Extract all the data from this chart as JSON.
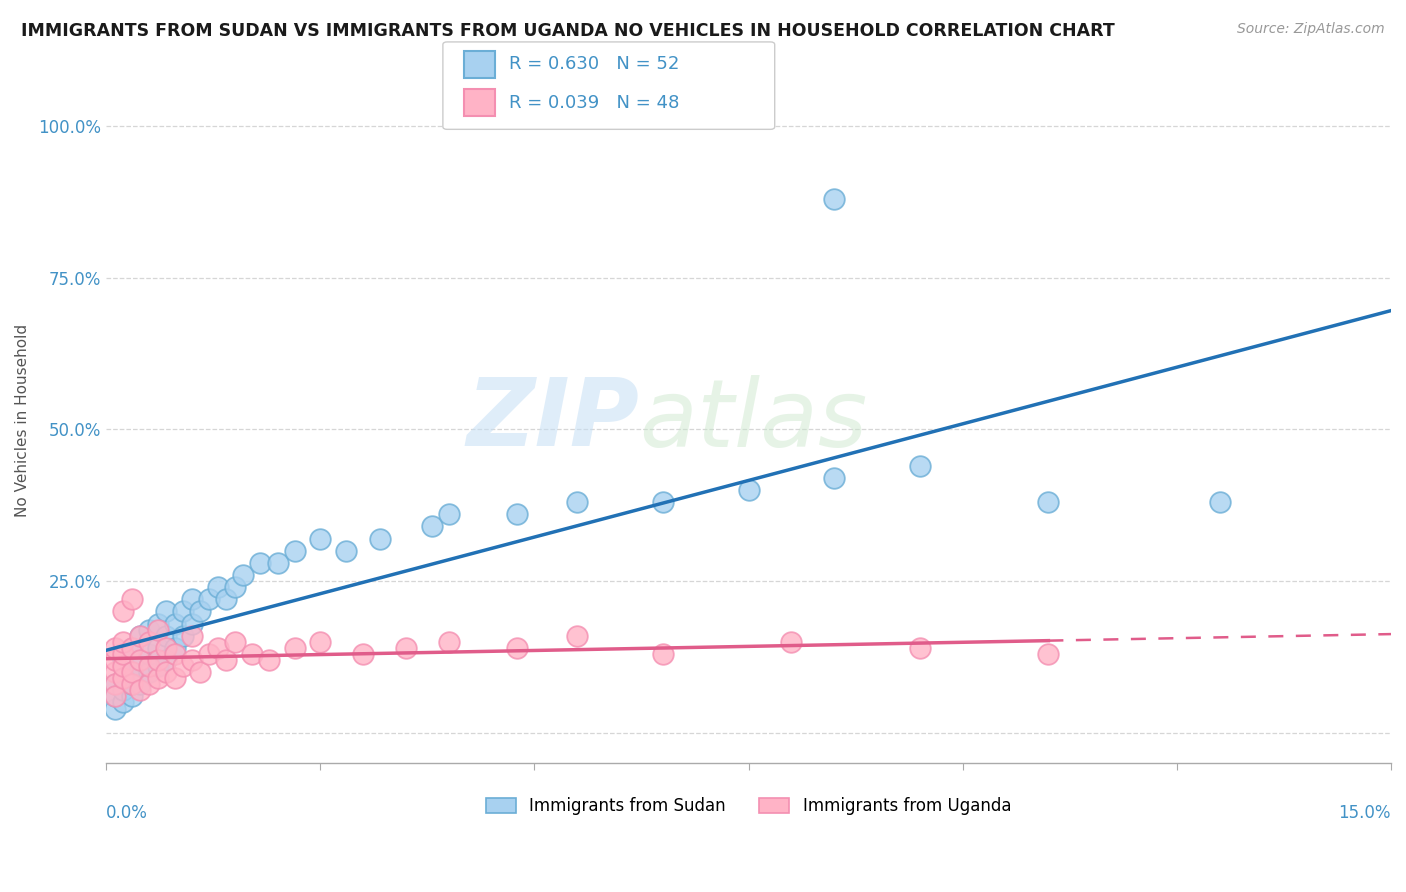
{
  "title": "IMMIGRANTS FROM SUDAN VS IMMIGRANTS FROM UGANDA NO VEHICLES IN HOUSEHOLD CORRELATION CHART",
  "source": "Source: ZipAtlas.com",
  "ylabel": "No Vehicles in Household",
  "xlim": [
    0.0,
    0.15
  ],
  "ylim": [
    -0.05,
    1.08
  ],
  "sudan_face_color": "#a8d1f0",
  "sudan_edge_color": "#6baed6",
  "uganda_face_color": "#ffb3c6",
  "uganda_edge_color": "#f48fb1",
  "sudan_line_color": "#2171b5",
  "uganda_line_color": "#e05c8a",
  "sudan_R": 0.63,
  "sudan_N": 52,
  "uganda_R": 0.039,
  "uganda_N": 48,
  "watermark_zip": "ZIP",
  "watermark_atlas": "atlas",
  "background_color": "#ffffff",
  "grid_color": "#cccccc",
  "tick_color": "#4292c6",
  "ytick_vals": [
    0.0,
    0.25,
    0.5,
    0.75,
    1.0
  ],
  "ytick_labels": [
    "",
    "25.0%",
    "50.0%",
    "75.0%",
    "100.0%"
  ],
  "sudan_x": [
    0.001,
    0.001,
    0.001,
    0.002,
    0.002,
    0.002,
    0.002,
    0.003,
    0.003,
    0.003,
    0.003,
    0.004,
    0.004,
    0.004,
    0.005,
    0.005,
    0.005,
    0.006,
    0.006,
    0.006,
    0.007,
    0.007,
    0.007,
    0.008,
    0.008,
    0.009,
    0.009,
    0.01,
    0.01,
    0.011,
    0.012,
    0.013,
    0.014,
    0.015,
    0.016,
    0.018,
    0.02,
    0.022,
    0.025,
    0.028,
    0.032,
    0.038,
    0.04,
    0.048,
    0.055,
    0.065,
    0.075,
    0.085,
    0.095,
    0.11,
    0.085,
    0.13
  ],
  "sudan_y": [
    0.04,
    0.06,
    0.08,
    0.05,
    0.07,
    0.09,
    0.12,
    0.06,
    0.08,
    0.1,
    0.14,
    0.08,
    0.11,
    0.16,
    0.1,
    0.13,
    0.17,
    0.11,
    0.14,
    0.18,
    0.12,
    0.16,
    0.2,
    0.14,
    0.18,
    0.16,
    0.2,
    0.18,
    0.22,
    0.2,
    0.22,
    0.24,
    0.22,
    0.24,
    0.26,
    0.28,
    0.28,
    0.3,
    0.32,
    0.3,
    0.32,
    0.34,
    0.36,
    0.36,
    0.38,
    0.38,
    0.4,
    0.42,
    0.44,
    0.38,
    0.88,
    0.38
  ],
  "uganda_x": [
    0.001,
    0.001,
    0.001,
    0.001,
    0.001,
    0.002,
    0.002,
    0.002,
    0.002,
    0.003,
    0.003,
    0.003,
    0.004,
    0.004,
    0.004,
    0.005,
    0.005,
    0.005,
    0.006,
    0.006,
    0.006,
    0.007,
    0.007,
    0.008,
    0.008,
    0.009,
    0.01,
    0.01,
    0.011,
    0.012,
    0.013,
    0.014,
    0.015,
    0.017,
    0.019,
    0.022,
    0.025,
    0.03,
    0.035,
    0.04,
    0.048,
    0.055,
    0.065,
    0.08,
    0.095,
    0.11,
    0.002,
    0.003
  ],
  "uganda_y": [
    0.1,
    0.08,
    0.12,
    0.06,
    0.14,
    0.09,
    0.11,
    0.13,
    0.15,
    0.08,
    0.1,
    0.14,
    0.07,
    0.12,
    0.16,
    0.08,
    0.11,
    0.15,
    0.09,
    0.12,
    0.17,
    0.1,
    0.14,
    0.09,
    0.13,
    0.11,
    0.12,
    0.16,
    0.1,
    0.13,
    0.14,
    0.12,
    0.15,
    0.13,
    0.12,
    0.14,
    0.15,
    0.13,
    0.14,
    0.15,
    0.14,
    0.16,
    0.13,
    0.15,
    0.14,
    0.13,
    0.2,
    0.22
  ]
}
